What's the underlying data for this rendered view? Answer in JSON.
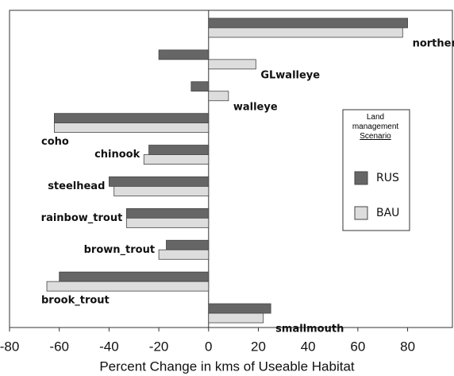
{
  "chart_data": {
    "type": "hbar",
    "xlabel": "Percent Change in kms of Useable Habitat",
    "categories": [
      "northern_pike",
      "GLwalleye",
      "walleye",
      "coho",
      "chinook",
      "steelhead",
      "rainbow_trout",
      "brown_trout",
      "brook_trout",
      "smallmouth"
    ],
    "series": [
      {
        "name": "RUS",
        "color": "#666666",
        "values": [
          80,
          -20,
          -7,
          -62,
          -24,
          -40,
          -33,
          -17,
          -60,
          25
        ]
      },
      {
        "name": "BAU",
        "color": "#dddddd",
        "values": [
          78,
          19,
          8,
          -62,
          -26,
          -38,
          -33,
          -20,
          -65,
          22
        ]
      }
    ],
    "xlim": [
      -80,
      98
    ],
    "xticks": [
      -80,
      -60,
      -40,
      -20,
      0,
      20,
      40,
      60,
      80
    ],
    "legend_title": "Land management",
    "legend_subtitle": "Scenario",
    "legend": "right"
  }
}
